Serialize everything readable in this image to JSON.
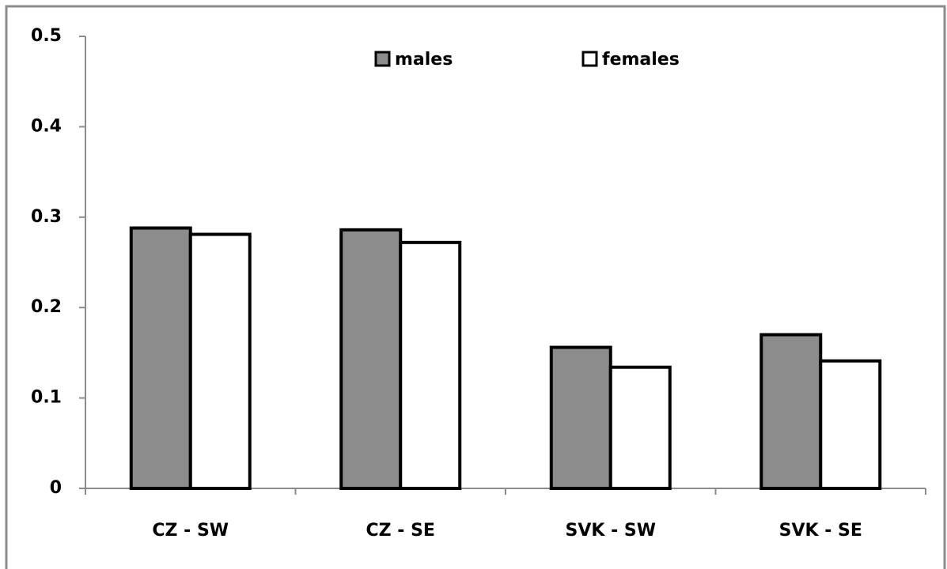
{
  "chart_data": {
    "type": "bar",
    "categories": [
      "CZ - SW",
      "CZ - SE",
      "SVK - SW",
      "SVK - SE"
    ],
    "series": [
      {
        "name": "males",
        "color": "#8c8c8c",
        "values": [
          0.288,
          0.286,
          0.156,
          0.17
        ]
      },
      {
        "name": "females",
        "color": "#ffffff",
        "values": [
          0.281,
          0.272,
          0.134,
          0.141
        ]
      }
    ],
    "ylim": [
      0,
      0.5
    ],
    "yticks": [
      0,
      0.1,
      0.2,
      0.3,
      0.4,
      0.5
    ],
    "grid": false,
    "legend": "top"
  }
}
